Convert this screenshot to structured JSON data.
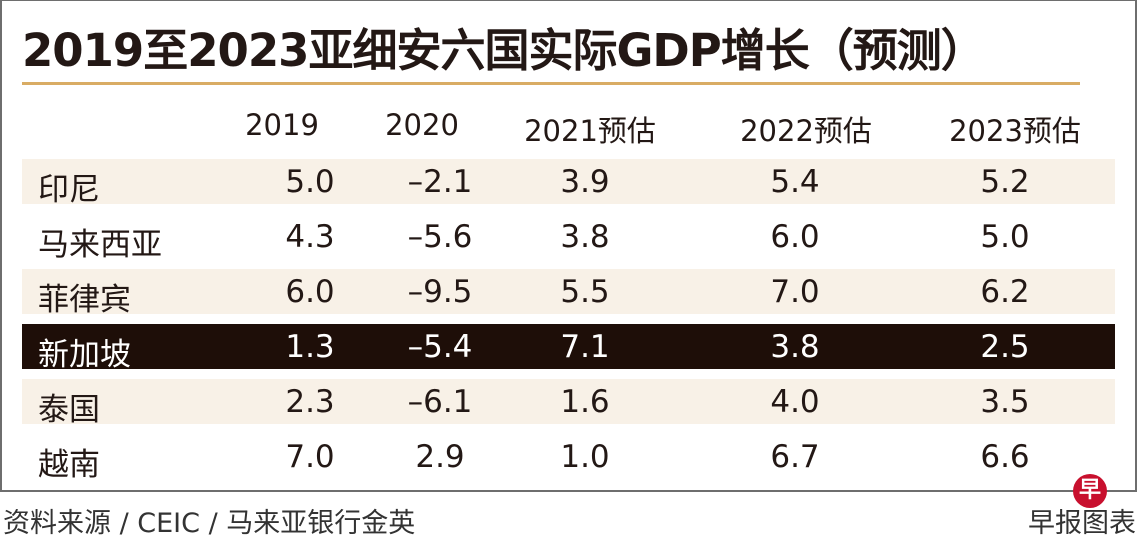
{
  "title": "2019至2023亚细安六国实际GDP增长（预测）",
  "colors": {
    "accent_rule": "#d9ac64",
    "row_shade": "#f8f1e7",
    "highlight_row": "#1e0e08",
    "logo_red": "#c8102e"
  },
  "chart_data": {
    "type": "table",
    "title": "2019至2023亚细安六国实际GDP增长（预测）",
    "columns": [
      "",
      "2019",
      "2020",
      "2021预估",
      "2022预估",
      "2023预估"
    ],
    "rows": [
      {
        "country": "印尼",
        "values": [
          "5.0",
          "–2.1",
          "3.9",
          "5.4",
          "5.2"
        ],
        "highlight": false
      },
      {
        "country": "马来西亚",
        "values": [
          "4.3",
          "–5.6",
          "3.8",
          "6.0",
          "5.0"
        ],
        "highlight": false
      },
      {
        "country": "菲律宾",
        "values": [
          "6.0",
          "–9.5",
          "5.5",
          "7.0",
          "6.2"
        ],
        "highlight": false
      },
      {
        "country": "新加坡",
        "values": [
          "1.3",
          "–5.4",
          "7.1",
          "3.8",
          "2.5"
        ],
        "highlight": true
      },
      {
        "country": "泰国",
        "values": [
          "2.3",
          "–6.1",
          "1.6",
          "4.0",
          "3.5"
        ],
        "highlight": false
      },
      {
        "country": "越南",
        "values": [
          "7.0",
          "2.9",
          "1.0",
          "6.7",
          "6.6"
        ],
        "highlight": false
      }
    ]
  },
  "footer": {
    "source": "资料来源 / CEIC / 马来亚银行金英",
    "brand": "早报图表",
    "logo_glyph": "早"
  }
}
